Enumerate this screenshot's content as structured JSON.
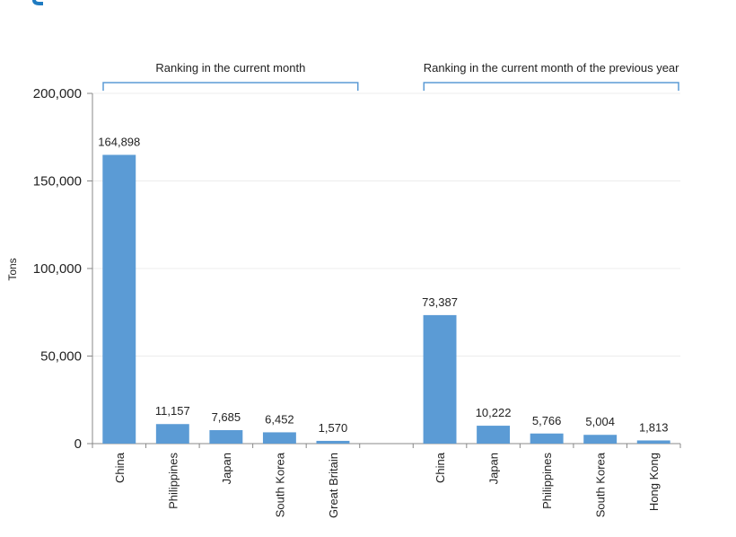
{
  "chart_data": {
    "type": "bar",
    "ylabel": "Tons",
    "ylim": [
      0,
      200000
    ],
    "yticks": [
      {
        "value": 0,
        "label": "0"
      },
      {
        "value": 50000,
        "label": "50,000"
      },
      {
        "value": 100000,
        "label": "100,000"
      },
      {
        "value": 150000,
        "label": "150,000"
      },
      {
        "value": 200000,
        "label": "200,000"
      }
    ],
    "grid": true,
    "bar_color": "#5b9bd5",
    "bracket_color": "#5b9bd5",
    "groups": [
      {
        "title": "Ranking in the current month",
        "categories": [
          "China",
          "Philippines",
          "Japan",
          "South Korea",
          "Great Britain"
        ],
        "values": [
          164898,
          11157,
          7685,
          6452,
          1570
        ],
        "labels": [
          "164,898",
          "11,157",
          "7,685",
          "6,452",
          "1,570"
        ]
      },
      {
        "title": "Ranking in the current month of the previous year",
        "categories": [
          "China",
          "Japan",
          "Philippines",
          "South Korea",
          "Hong Kong"
        ],
        "values": [
          73387,
          10222,
          5766,
          5004,
          1813
        ],
        "labels": [
          "73,387",
          "10,222",
          "5,766",
          "5,004",
          "1,813"
        ]
      }
    ]
  }
}
